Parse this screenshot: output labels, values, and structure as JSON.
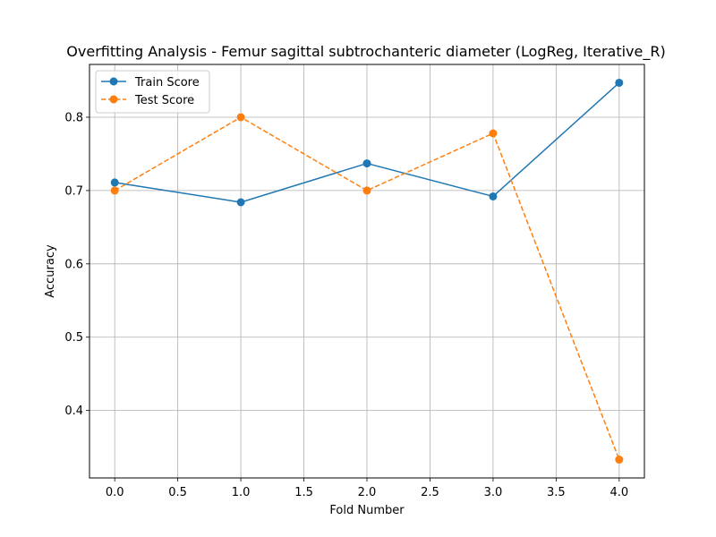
{
  "chart_data": {
    "type": "line",
    "title": "Overfitting Analysis - Femur sagittal subtrochanteric diameter (LogReg, Iterative_R)",
    "xlabel": "Fold Number",
    "ylabel": "Accuracy",
    "x": [
      0,
      1,
      2,
      3,
      4
    ],
    "xlim": [
      -0.2,
      4.2
    ],
    "ylim": [
      0.308,
      0.872
    ],
    "xticks": [
      0.0,
      0.5,
      1.0,
      1.5,
      2.0,
      2.5,
      3.0,
      3.5,
      4.0
    ],
    "xtick_labels": [
      "0.0",
      "0.5",
      "1.0",
      "1.5",
      "2.0",
      "2.5",
      "3.0",
      "3.5",
      "4.0"
    ],
    "yticks": [
      0.4,
      0.5,
      0.6,
      0.7,
      0.8
    ],
    "ytick_labels": [
      "0.4",
      "0.5",
      "0.6",
      "0.7",
      "0.8"
    ],
    "grid": true,
    "legend_position": "top-left",
    "series": [
      {
        "name": "Train Score",
        "values": [
          0.711,
          0.684,
          0.737,
          0.692,
          0.847
        ],
        "color": "#1f77b4",
        "line_style": "solid",
        "marker": "circle"
      },
      {
        "name": "Test Score",
        "values": [
          0.7,
          0.8,
          0.7,
          0.778,
          0.333
        ],
        "color": "#ff7f0e",
        "line_style": "dashed",
        "marker": "circle"
      }
    ]
  }
}
